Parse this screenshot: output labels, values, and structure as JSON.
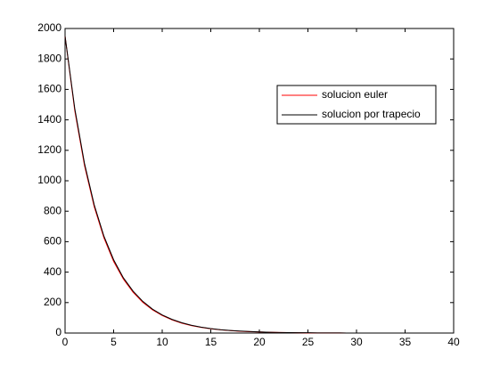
{
  "chart_data": {
    "type": "line",
    "x": [
      0,
      1,
      2,
      3,
      4,
      5,
      6,
      7,
      8,
      9,
      10,
      11,
      12,
      13,
      14,
      15,
      16,
      17,
      18,
      19,
      20,
      21,
      22,
      23,
      24,
      25,
      26,
      27,
      28,
      29,
      30,
      31,
      32,
      33,
      34,
      35,
      36,
      37,
      38,
      39,
      40
    ],
    "series": [
      {
        "name": "solucion euler",
        "color": "#ff0000",
        "values": [
          1950,
          1460,
          1100,
          830,
          625,
          470,
          355,
          268,
          202,
          152,
          115,
          87,
          65,
          49,
          37,
          28,
          21,
          16,
          12,
          9,
          7,
          5,
          4,
          3,
          2,
          1,
          1,
          1,
          1,
          0,
          0,
          0,
          0,
          0,
          0,
          0,
          0,
          0,
          0,
          0,
          0
        ]
      },
      {
        "name": "solucion por trapecio",
        "color": "#000000",
        "values": [
          1950,
          1474,
          1114,
          842,
          636,
          481,
          363,
          275,
          208,
          157,
          119,
          90,
          68,
          51,
          39,
          29,
          22,
          17,
          13,
          10,
          7,
          5,
          4,
          3,
          2,
          2,
          1,
          1,
          1,
          0,
          0,
          0,
          0,
          0,
          0,
          0,
          0,
          0,
          0,
          0,
          0
        ]
      }
    ],
    "xlim": [
      0,
      40
    ],
    "xticks": [
      0,
      5,
      10,
      15,
      20,
      25,
      30,
      35,
      40
    ],
    "ylim": [
      0,
      2000
    ],
    "yticks": [
      0,
      200,
      400,
      600,
      800,
      1000,
      1200,
      1400,
      1600,
      1800,
      2000
    ],
    "legend": "upper-right"
  }
}
